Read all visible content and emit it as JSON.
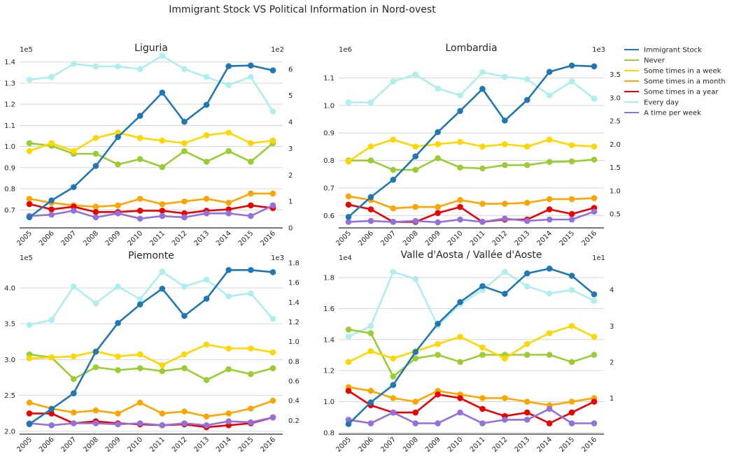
{
  "title": "Immigrant Stock VS Political Information in Nord-ovest",
  "colors": {
    "Immigrant Stock": "#1f77b4",
    "Never": "#9acd32",
    "Some times in a week": "#ffd700",
    "Some times in a month": "#ffa500",
    "Some times in a year": "#ee0000",
    "Every day": "#afeeee",
    "A time per week": "#9370db"
  },
  "legend": [
    "Immigrant Stock",
    "Never",
    "Some times in a week",
    "Some times in a month",
    "Some times in a year",
    "Every day",
    "A time per week"
  ],
  "chart_data": [
    {
      "type": "line",
      "title": "Liguria",
      "x": [
        "2005",
        "2006",
        "2007",
        "2008",
        "2009",
        "2010",
        "2011",
        "2012",
        "2013",
        "2014",
        "2015",
        "2016"
      ],
      "left_axis": {
        "multiplier": "1e5",
        "ylim": [
          0.615,
          1.435
        ],
        "ticks": [
          "0.7",
          "0.8",
          "0.9",
          "1.0",
          "1.1",
          "1.2",
          "1.3",
          "1.4"
        ],
        "tick_values": [
          0.7,
          0.8,
          0.9,
          1.0,
          1.1,
          1.2,
          1.3,
          1.4
        ]
      },
      "right_axis": {
        "multiplier": "1e2",
        "ylim": [
          0,
          6.55
        ],
        "ticks": [
          "0",
          "1",
          "2",
          "3",
          "4",
          "5",
          "6"
        ],
        "tick_values": [
          0,
          1,
          2,
          3,
          4,
          5,
          6
        ]
      },
      "series": [
        {
          "name": "Immigrant Stock",
          "axis": "left",
          "values": [
            0.665,
            0.745,
            0.808,
            0.908,
            1.045,
            1.145,
            1.255,
            1.117,
            1.197,
            1.38,
            1.383,
            1.36
          ]
        },
        {
          "name": "Never",
          "axis": "right",
          "values": [
            3.2,
            3.1,
            2.8,
            2.8,
            2.4,
            2.6,
            2.3,
            2.9,
            2.5,
            2.9,
            2.5,
            3.2
          ]
        },
        {
          "name": "Some times in a week",
          "axis": "right",
          "values": [
            2.9,
            3.2,
            2.9,
            3.4,
            3.6,
            3.4,
            3.3,
            3.2,
            3.5,
            3.6,
            3.2,
            3.3
          ]
        },
        {
          "name": "Some times in a month",
          "axis": "right",
          "values": [
            1.1,
            0.95,
            0.85,
            0.8,
            0.85,
            1.1,
            0.9,
            1.0,
            1.1,
            0.95,
            1.3,
            1.3
          ]
        },
        {
          "name": "Some times in a year",
          "axis": "right",
          "values": [
            0.9,
            0.7,
            0.8,
            0.6,
            0.6,
            0.65,
            0.65,
            0.55,
            0.65,
            0.7,
            0.85,
            0.75
          ]
        },
        {
          "name": "Every day",
          "axis": "right",
          "values": [
            5.6,
            5.7,
            6.2,
            6.1,
            6.1,
            6.0,
            6.5,
            6.0,
            5.7,
            5.4,
            5.7,
            4.4
          ]
        },
        {
          "name": "A time per week",
          "axis": "right",
          "values": [
            0.45,
            0.5,
            0.65,
            0.4,
            0.55,
            0.35,
            0.45,
            0.4,
            0.55,
            0.55,
            0.45,
            0.85
          ]
        }
      ]
    },
    {
      "type": "line",
      "title": "Lombardia",
      "x": [
        "2005",
        "2006",
        "2007",
        "2008",
        "2009",
        "2010",
        "2011",
        "2012",
        "2013",
        "2014",
        "2015",
        "2016"
      ],
      "left_axis": {
        "multiplier": "1e6",
        "ylim": [
          0.555,
          1.185
        ],
        "ticks": [
          "0.6",
          "0.7",
          "0.8",
          "0.9",
          "1.0",
          "1.1"
        ],
        "tick_values": [
          0.6,
          0.7,
          0.8,
          0.9,
          1.0,
          1.1
        ]
      },
      "right_axis": {
        "multiplier": "1e3",
        "ylim": [
          0.2,
          3.93
        ],
        "ticks": [
          "0.5",
          "1.0",
          "1.5",
          "2.0",
          "2.5",
          "3.0",
          "3.5"
        ],
        "tick_values": [
          0.5,
          1.0,
          1.5,
          2.0,
          2.5,
          3.0,
          3.5
        ]
      },
      "series": [
        {
          "name": "Immigrant Stock",
          "axis": "left",
          "values": [
            0.595,
            0.667,
            0.73,
            0.815,
            0.903,
            0.98,
            1.06,
            0.945,
            1.02,
            1.122,
            1.145,
            1.142
          ]
        },
        {
          "name": "Never",
          "axis": "right",
          "values": [
            1.65,
            1.65,
            1.45,
            1.45,
            1.7,
            1.5,
            1.48,
            1.55,
            1.55,
            1.62,
            1.63,
            1.67
          ]
        },
        {
          "name": "Some times in a week",
          "axis": "right",
          "values": [
            1.63,
            1.95,
            2.1,
            1.95,
            2.0,
            2.05,
            1.95,
            2.0,
            1.95,
            2.1,
            1.98,
            1.95
          ]
        },
        {
          "name": "Some times in a month",
          "axis": "right",
          "values": [
            0.88,
            0.8,
            0.62,
            0.65,
            0.65,
            0.8,
            0.72,
            0.72,
            0.74,
            0.82,
            0.82,
            0.84
          ]
        },
        {
          "name": "Some times in a year",
          "axis": "right",
          "values": [
            0.7,
            0.6,
            0.33,
            0.33,
            0.52,
            0.65,
            0.33,
            0.38,
            0.38,
            0.6,
            0.5,
            0.63
          ]
        },
        {
          "name": "Every day",
          "axis": "right",
          "values": [
            2.9,
            2.9,
            3.35,
            3.5,
            3.2,
            3.05,
            3.55,
            3.45,
            3.4,
            3.05,
            3.35,
            2.98
          ]
        },
        {
          "name": "A time per week",
          "axis": "right",
          "values": [
            0.33,
            0.35,
            0.33,
            0.35,
            0.32,
            0.38,
            0.33,
            0.4,
            0.35,
            0.38,
            0.38,
            0.55
          ]
        }
      ]
    },
    {
      "type": "line",
      "title": "Piemonte",
      "x": [
        "2005",
        "2006",
        "2007",
        "2008",
        "2009",
        "2010",
        "2011",
        "2012",
        "2013",
        "2014",
        "2015",
        "2016"
      ],
      "left_axis": {
        "multiplier": "1e5",
        "ylim": [
          1.96,
          4.35
        ],
        "ticks": [
          "2.0",
          "2.5",
          "3.0",
          "3.5",
          "4.0"
        ],
        "tick_values": [
          2.0,
          2.5,
          3.0,
          3.5,
          4.0
        ]
      },
      "right_axis": {
        "multiplier": "1e3",
        "ylim": [
          0.06,
          1.8
        ],
        "ticks": [
          "0.2",
          "0.4",
          "0.6",
          "0.8",
          "1.0",
          "1.2",
          "1.4",
          "1.6",
          "1.8"
        ],
        "tick_values": [
          0.2,
          0.4,
          0.6,
          0.8,
          1.0,
          1.2,
          1.4,
          1.6,
          1.8
        ]
      },
      "series": [
        {
          "name": "Immigrant Stock",
          "axis": "left",
          "values": [
            2.1,
            2.31,
            2.53,
            3.11,
            3.51,
            3.77,
            3.99,
            3.61,
            3.85,
            4.25,
            4.25,
            4.22
          ]
        },
        {
          "name": "Never",
          "axis": "right",
          "values": [
            0.87,
            0.84,
            0.62,
            0.74,
            0.71,
            0.73,
            0.7,
            0.73,
            0.61,
            0.72,
            0.67,
            0.73
          ]
        },
        {
          "name": "Some times in a week",
          "axis": "right",
          "values": [
            0.83,
            0.84,
            0.85,
            0.9,
            0.85,
            0.87,
            0.76,
            0.87,
            0.97,
            0.93,
            0.93,
            0.89
          ]
        },
        {
          "name": "Some times in a month",
          "axis": "right",
          "values": [
            0.38,
            0.32,
            0.28,
            0.3,
            0.27,
            0.38,
            0.27,
            0.29,
            0.24,
            0.27,
            0.32,
            0.4
          ]
        },
        {
          "name": "Some times in a year",
          "axis": "right",
          "values": [
            0.27,
            0.27,
            0.17,
            0.19,
            0.17,
            0.16,
            0.15,
            0.16,
            0.13,
            0.15,
            0.17,
            0.23
          ]
        },
        {
          "name": "Every day",
          "axis": "right",
          "values": [
            1.17,
            1.22,
            1.56,
            1.39,
            1.56,
            1.43,
            1.71,
            1.56,
            1.63,
            1.46,
            1.49,
            1.23
          ]
        },
        {
          "name": "A time per week",
          "axis": "right",
          "values": [
            0.17,
            0.15,
            0.17,
            0.17,
            0.16,
            0.17,
            0.15,
            0.17,
            0.15,
            0.19,
            0.18,
            0.23
          ]
        }
      ]
    },
    {
      "type": "line",
      "title": "Valle d'Aosta / Vallée d'Aoste",
      "x": [
        "2005",
        "2006",
        "2007",
        "2008",
        "2009",
        "2010",
        "2011",
        "2012",
        "2013",
        "2014",
        "2015",
        "2016"
      ],
      "left_axis": {
        "multiplier": "1e4",
        "ylim": [
          0.79,
          1.895
        ],
        "ticks": [
          "0.8",
          "1.0",
          "1.2",
          "1.4",
          "1.6",
          "1.8"
        ],
        "tick_values": [
          0.8,
          1.0,
          1.2,
          1.4,
          1.6,
          1.8
        ]
      },
      "right_axis": {
        "multiplier": "1e1",
        "ylim": [
          0,
          4.75
        ],
        "ticks": [
          "1",
          "2",
          "3",
          "4"
        ],
        "tick_values": [
          1,
          2,
          3,
          4
        ]
      },
      "series": [
        {
          "name": "Immigrant Stock",
          "axis": "left",
          "values": [
            0.855,
            0.995,
            1.107,
            1.32,
            1.502,
            1.642,
            1.745,
            1.695,
            1.827,
            1.858,
            1.812,
            1.692
          ]
        },
        {
          "name": "Never",
          "axis": "right",
          "values": [
            2.9,
            2.8,
            1.6,
            2.1,
            2.2,
            2.0,
            2.2,
            2.2,
            2.2,
            2.2,
            2.0,
            2.2
          ]
        },
        {
          "name": "Some times in a week",
          "axis": "right",
          "values": [
            2.0,
            2.3,
            2.1,
            2.3,
            2.5,
            2.7,
            2.4,
            2.1,
            2.5,
            2.8,
            3.0,
            2.7
          ]
        },
        {
          "name": "Some times in a month",
          "axis": "right",
          "values": [
            1.3,
            1.2,
            1.0,
            0.9,
            1.2,
            1.1,
            1.0,
            1.0,
            0.9,
            0.8,
            0.9,
            1.0
          ]
        },
        {
          "name": "Some times in a year",
          "axis": "right",
          "values": [
            1.2,
            0.8,
            0.6,
            0.6,
            1.1,
            1.0,
            0.7,
            0.5,
            0.6,
            0.3,
            0.6,
            0.9
          ]
        },
        {
          "name": "Every day",
          "axis": "right",
          "values": [
            2.7,
            3.0,
            4.5,
            4.3,
            3.0,
            3.6,
            4.0,
            4.5,
            4.1,
            3.9,
            4.0,
            3.7
          ]
        },
        {
          "name": "A time per week",
          "axis": "right",
          "values": [
            0.4,
            0.3,
            0.6,
            0.3,
            0.3,
            0.6,
            0.3,
            0.4,
            0.4,
            0.7,
            0.3,
            0.3
          ]
        }
      ]
    }
  ]
}
